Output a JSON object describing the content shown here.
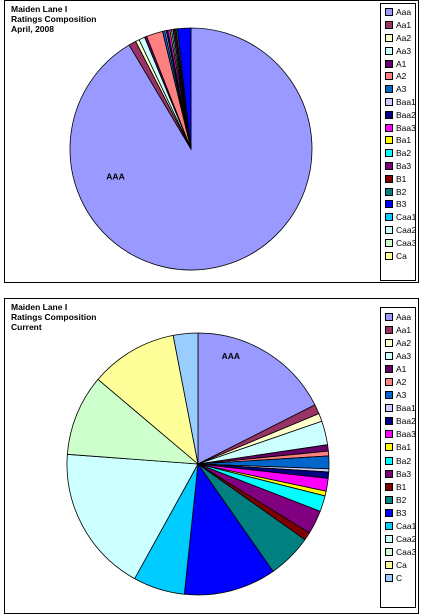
{
  "charts": [
    {
      "title_lines": [
        "Maiden Lane I",
        "Ratings Composition",
        "April, 2008"
      ],
      "slice_label": "AAA"
    },
    {
      "title_lines": [
        "Maiden Lane I",
        "Ratings Composition",
        "Current"
      ],
      "slice_label": "AAA"
    }
  ],
  "chart_data": [
    {
      "type": "pie",
      "title": "Maiden Lane I Ratings Composition April, 2008",
      "legend_position": "right",
      "categories": [
        "Aaa",
        "Aa1",
        "Aa2",
        "Aa3",
        "A1",
        "A2",
        "A3",
        "Baa1",
        "Baa2",
        "Baa3",
        "Ba1",
        "Ba2",
        "Ba3",
        "B1",
        "B2",
        "B3",
        "Caa1",
        "Caa2",
        "Caa3",
        "Ca"
      ],
      "values": [
        92.0,
        1.0,
        0.5,
        0.8,
        0.3,
        2.2,
        0.3,
        0.2,
        0.2,
        0.3,
        0.2,
        0.2,
        0.2,
        0.2,
        0.2,
        1.8,
        0.0,
        0.0,
        0.0,
        0.0
      ],
      "colors": [
        "#9999ff",
        "#993366",
        "#ffffcc",
        "#ccffff",
        "#660066",
        "#ff8080",
        "#0066cc",
        "#ccccff",
        "#000080",
        "#ff00ff",
        "#ffff00",
        "#00ffff",
        "#800080",
        "#800000",
        "#008080",
        "#0000ff",
        "#00ccff",
        "#ccffff",
        "#ccffcc",
        "#ffff99"
      ]
    },
    {
      "type": "pie",
      "title": "Maiden Lane I Ratings Composition Current",
      "legend_position": "right",
      "categories": [
        "Aaa",
        "Aa1",
        "Aa2",
        "Aa3",
        "A1",
        "A2",
        "A3",
        "Baa1",
        "Baa2",
        "Baa3",
        "Ba1",
        "Ba2",
        "Ba3",
        "B1",
        "B2",
        "B3",
        "Caa1",
        "Caa2",
        "Caa3",
        "Ca",
        "C"
      ],
      "values": [
        17.9,
        1.2,
        1.0,
        3.0,
        0.8,
        0.6,
        1.6,
        0.4,
        0.8,
        1.6,
        0.6,
        2.0,
        3.0,
        1.0,
        5.6,
        11.6,
        6.5,
        18.5,
        10.2,
        11.0,
        3.1
      ],
      "colors": [
        "#9999ff",
        "#993366",
        "#ffffcc",
        "#ccffff",
        "#660066",
        "#ff8080",
        "#0066cc",
        "#ccccff",
        "#000080",
        "#ff00ff",
        "#ffff00",
        "#00ffff",
        "#800080",
        "#800000",
        "#008080",
        "#0000ff",
        "#00ccff",
        "#ccffff",
        "#ccffcc",
        "#ffff99",
        "#99ccff"
      ]
    }
  ]
}
